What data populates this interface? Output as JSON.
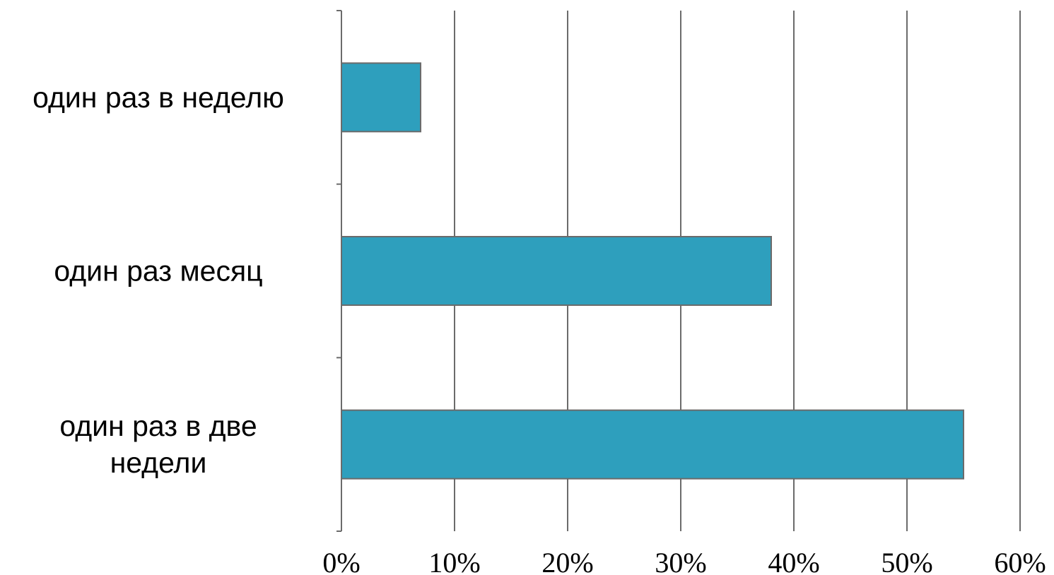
{
  "chart_data": {
    "type": "bar",
    "orientation": "horizontal",
    "categories": [
      [
        "один раз в неделю"
      ],
      [
        "один раз месяц"
      ],
      [
        "один раз в две",
        "недели"
      ]
    ],
    "values": [
      7,
      38,
      55
    ],
    "xlim": [
      0,
      60
    ],
    "xticks": [
      0,
      10,
      20,
      30,
      40,
      50,
      60
    ],
    "xtick_labels": [
      "0%",
      "10%",
      "20%",
      "30%",
      "40%",
      "50%",
      "60%"
    ],
    "grid": "vertical",
    "title": "",
    "xlabel": "",
    "ylabel": "",
    "bar_color": "#2e9fbd",
    "bar_edge_color": "#6b6b6b",
    "grid_color": "#6b6b6b"
  }
}
